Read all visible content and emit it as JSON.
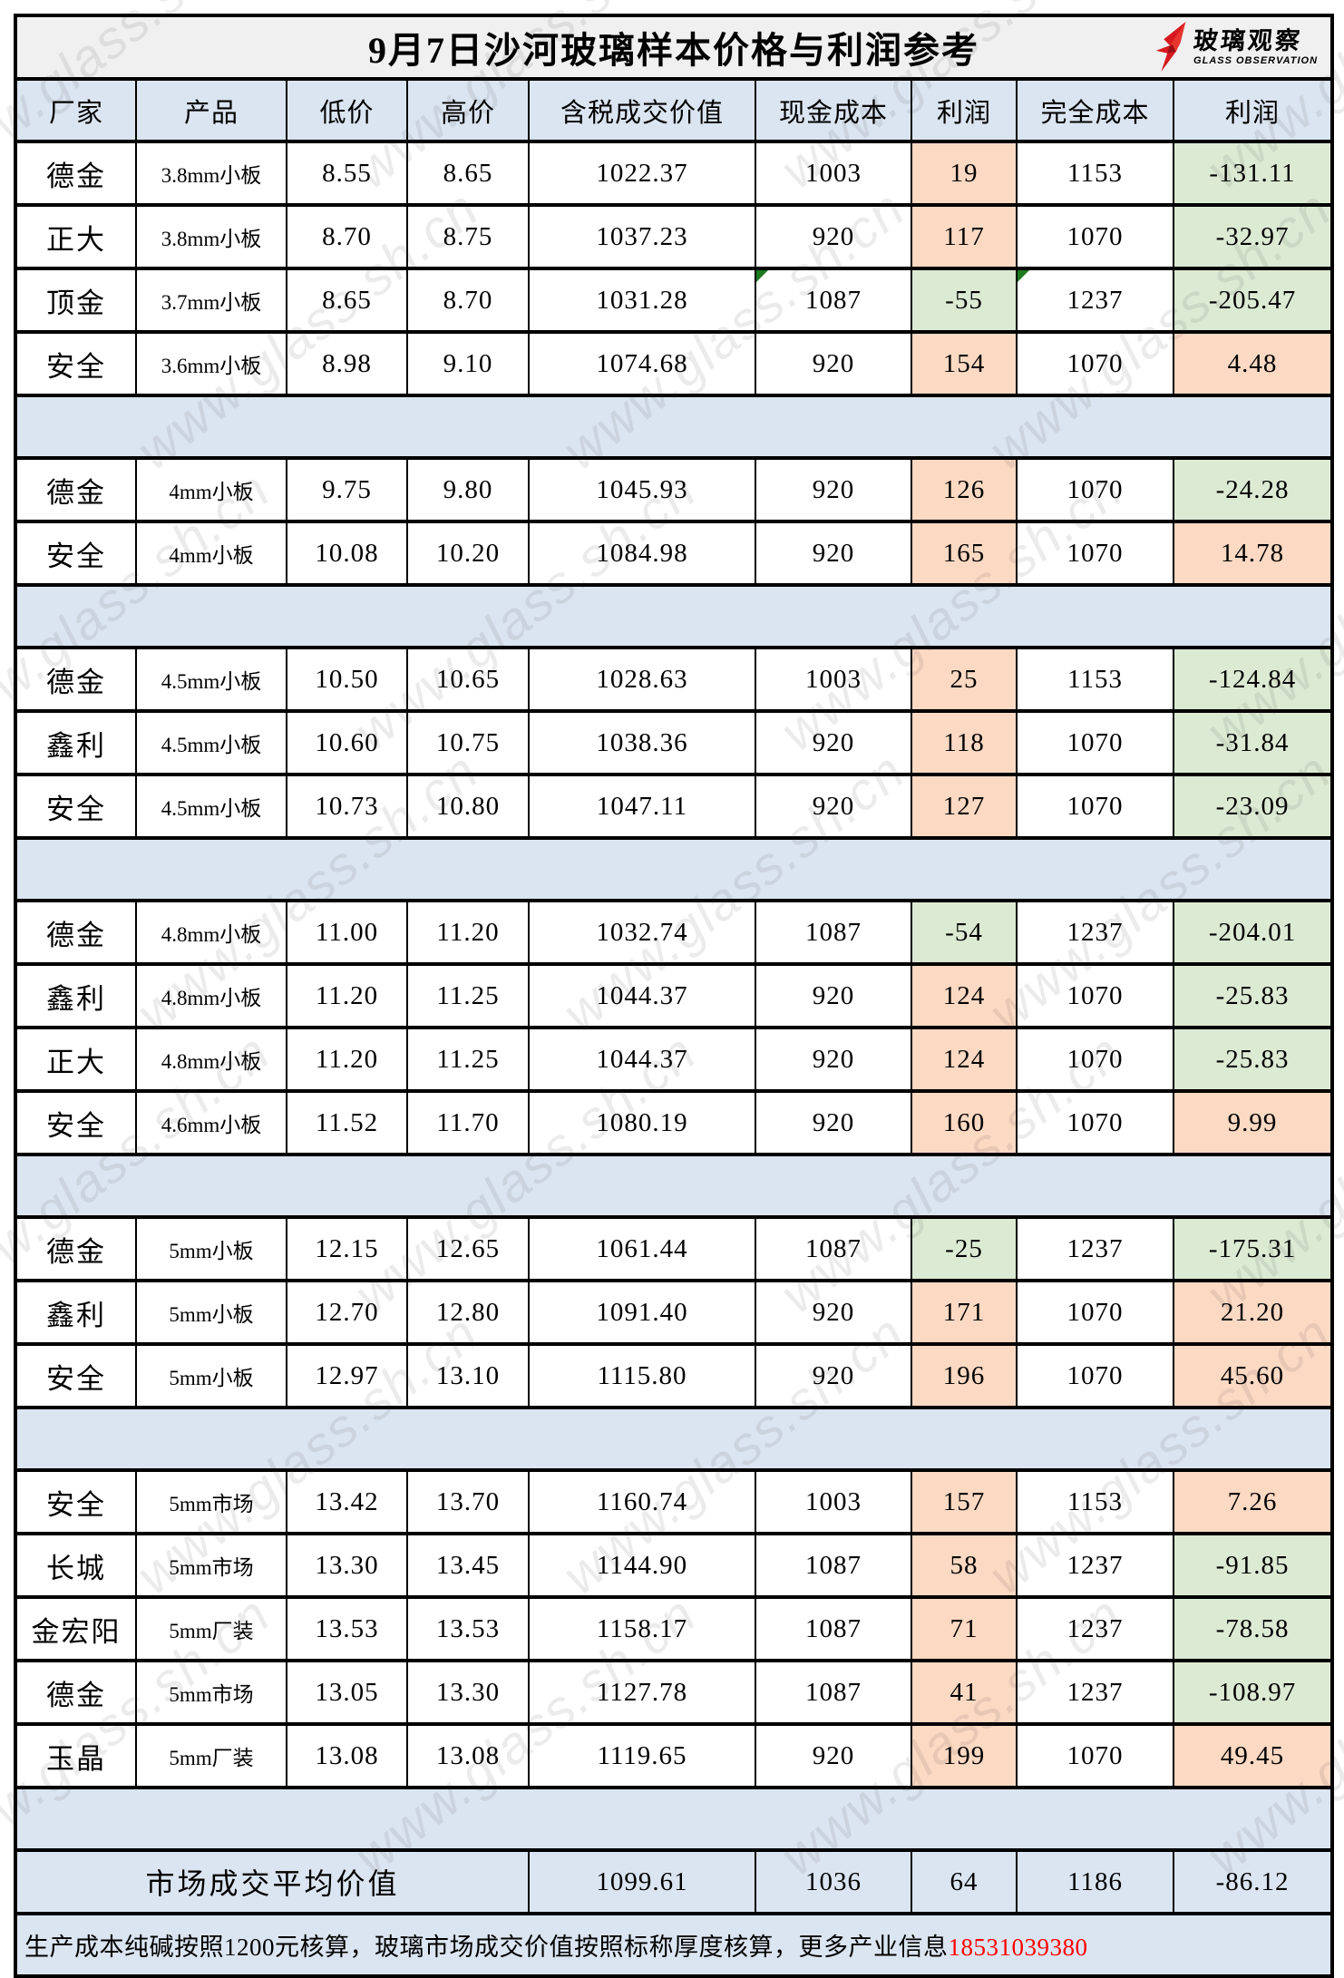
{
  "title": "9月7日沙河玻璃样本价格与利润参考",
  "logo": {
    "cn": "玻璃观察",
    "en": "GLASS OBSERVATION"
  },
  "watermark": "www.glass.sh.cn",
  "columns": [
    "厂家",
    "产品",
    "低价",
    "高价",
    "含税成交价值",
    "现金成本",
    "利润",
    "完全成本",
    "利润"
  ],
  "colors": {
    "header_blue": "#dbe5f1",
    "profit_positive_peach": "#fcd9c3",
    "profit_negative_green": "#dcead3",
    "title_gray": "#f0f0f0",
    "phone_red": "#ff0000",
    "logo_red": "#d8191f",
    "marker_green": "#1e7a1e"
  },
  "sections": [
    {
      "rows": [
        {
          "factory": "德金",
          "product": "3.8mm小板",
          "low": "8.55",
          "high": "8.65",
          "value": "1022.37",
          "cash_cost": "1003",
          "cash_profit": "19",
          "full_cost": "1153",
          "full_profit": "-131.11"
        },
        {
          "factory": "正大",
          "product": "3.8mm小板",
          "low": "8.70",
          "high": "8.75",
          "value": "1037.23",
          "cash_cost": "920",
          "cash_profit": "117",
          "full_cost": "1070",
          "full_profit": "-32.97"
        },
        {
          "factory": "顶金",
          "product": "3.7mm小板",
          "low": "8.65",
          "high": "8.70",
          "value": "1031.28",
          "cash_cost": "1087",
          "cash_profit": "-55",
          "full_cost": "1237",
          "full_profit": "-205.47",
          "markers": [
            "cash_cost",
            "full_cost"
          ]
        },
        {
          "factory": "安全",
          "product": "3.6mm小板",
          "low": "8.98",
          "high": "9.10",
          "value": "1074.68",
          "cash_cost": "920",
          "cash_profit": "154",
          "full_cost": "1070",
          "full_profit": "4.48"
        }
      ]
    },
    {
      "rows": [
        {
          "factory": "德金",
          "product": "4mm小板",
          "low": "9.75",
          "high": "9.80",
          "value": "1045.93",
          "cash_cost": "920",
          "cash_profit": "126",
          "full_cost": "1070",
          "full_profit": "-24.28"
        },
        {
          "factory": "安全",
          "product": "4mm小板",
          "low": "10.08",
          "high": "10.20",
          "value": "1084.98",
          "cash_cost": "920",
          "cash_profit": "165",
          "full_cost": "1070",
          "full_profit": "14.78"
        }
      ]
    },
    {
      "rows": [
        {
          "factory": "德金",
          "product": "4.5mm小板",
          "low": "10.50",
          "high": "10.65",
          "value": "1028.63",
          "cash_cost": "1003",
          "cash_profit": "25",
          "full_cost": "1153",
          "full_profit": "-124.84"
        },
        {
          "factory": "鑫利",
          "product": "4.5mm小板",
          "low": "10.60",
          "high": "10.75",
          "value": "1038.36",
          "cash_cost": "920",
          "cash_profit": "118",
          "full_cost": "1070",
          "full_profit": "-31.84"
        },
        {
          "factory": "安全",
          "product": "4.5mm小板",
          "low": "10.73",
          "high": "10.80",
          "value": "1047.11",
          "cash_cost": "920",
          "cash_profit": "127",
          "full_cost": "1070",
          "full_profit": "-23.09"
        }
      ]
    },
    {
      "rows": [
        {
          "factory": "德金",
          "product": "4.8mm小板",
          "low": "11.00",
          "high": "11.20",
          "value": "1032.74",
          "cash_cost": "1087",
          "cash_profit": "-54",
          "full_cost": "1237",
          "full_profit": "-204.01"
        },
        {
          "factory": "鑫利",
          "product": "4.8mm小板",
          "low": "11.20",
          "high": "11.25",
          "value": "1044.37",
          "cash_cost": "920",
          "cash_profit": "124",
          "full_cost": "1070",
          "full_profit": "-25.83"
        },
        {
          "factory": "正大",
          "product": "4.8mm小板",
          "low": "11.20",
          "high": "11.25",
          "value": "1044.37",
          "cash_cost": "920",
          "cash_profit": "124",
          "full_cost": "1070",
          "full_profit": "-25.83"
        },
        {
          "factory": "安全",
          "product": "4.6mm小板",
          "low": "11.52",
          "high": "11.70",
          "value": "1080.19",
          "cash_cost": "920",
          "cash_profit": "160",
          "full_cost": "1070",
          "full_profit": "9.99"
        }
      ]
    },
    {
      "rows": [
        {
          "factory": "德金",
          "product": "5mm小板",
          "low": "12.15",
          "high": "12.65",
          "value": "1061.44",
          "cash_cost": "1087",
          "cash_profit": "-25",
          "full_cost": "1237",
          "full_profit": "-175.31"
        },
        {
          "factory": "鑫利",
          "product": "5mm小板",
          "low": "12.70",
          "high": "12.80",
          "value": "1091.40",
          "cash_cost": "920",
          "cash_profit": "171",
          "full_cost": "1070",
          "full_profit": "21.20"
        },
        {
          "factory": "安全",
          "product": "5mm小板",
          "low": "12.97",
          "high": "13.10",
          "value": "1115.80",
          "cash_cost": "920",
          "cash_profit": "196",
          "full_cost": "1070",
          "full_profit": "45.60"
        }
      ]
    },
    {
      "rows": [
        {
          "factory": "安全",
          "product": "5mm市场",
          "low": "13.42",
          "high": "13.70",
          "value": "1160.74",
          "cash_cost": "1003",
          "cash_profit": "157",
          "full_cost": "1153",
          "full_profit": "7.26"
        },
        {
          "factory": "长城",
          "product": "5mm市场",
          "low": "13.30",
          "high": "13.45",
          "value": "1144.90",
          "cash_cost": "1087",
          "cash_profit": "58",
          "full_cost": "1237",
          "full_profit": "-91.85"
        },
        {
          "factory": "金宏阳",
          "product": "5mm厂装",
          "low": "13.53",
          "high": "13.53",
          "value": "1158.17",
          "cash_cost": "1087",
          "cash_profit": "71",
          "full_cost": "1237",
          "full_profit": "-78.58"
        },
        {
          "factory": "德金",
          "product": "5mm市场",
          "low": "13.05",
          "high": "13.30",
          "value": "1127.78",
          "cash_cost": "1087",
          "cash_profit": "41",
          "full_cost": "1237",
          "full_profit": "-108.97"
        },
        {
          "factory": "玉晶",
          "product": "5mm厂装",
          "low": "13.08",
          "high": "13.08",
          "value": "1119.65",
          "cash_cost": "920",
          "cash_profit": "199",
          "full_cost": "1070",
          "full_profit": "49.45"
        }
      ]
    }
  ],
  "average": {
    "label": "市场成交平均价值",
    "value": "1099.61",
    "cash_cost": "1036",
    "cash_profit": "64",
    "full_cost": "1186",
    "full_profit": "-86.12"
  },
  "footer": {
    "text": "生产成本纯碱按照1200元核算，玻璃市场成交价值按照标称厚度核算，更多产业信息",
    "phone": "18531039380"
  }
}
